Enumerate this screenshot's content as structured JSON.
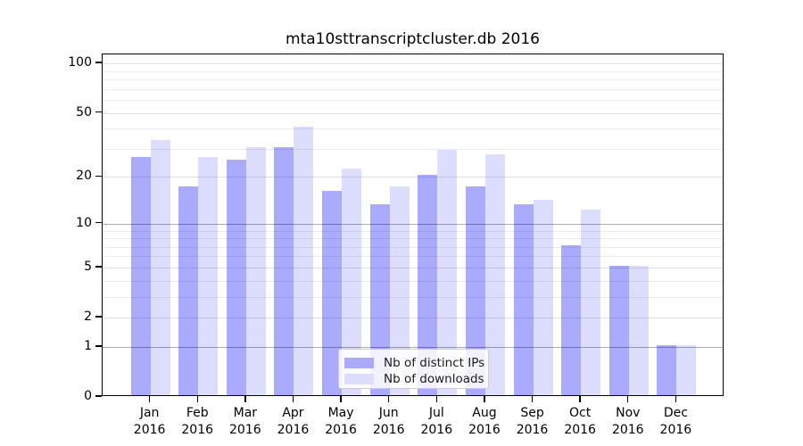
{
  "chart_data": {
    "type": "bar",
    "title": "mta10sttranscriptcluster.db 2016",
    "categories": [
      "Jan",
      "Feb",
      "Mar",
      "Apr",
      "May",
      "Jun",
      "Jul",
      "Aug",
      "Sep",
      "Oct",
      "Nov",
      "Dec"
    ],
    "category_year": "2016",
    "series": [
      {
        "name": "Nb of distinct IPs",
        "color": "#aaaaff",
        "values": [
          26,
          17,
          25,
          30,
          16,
          13,
          20,
          17,
          13,
          7,
          5,
          1
        ]
      },
      {
        "name": "Nb of downloads",
        "color": "#ddddff",
        "values": [
          33,
          26,
          30,
          40,
          22,
          17,
          29,
          27,
          14,
          12,
          5,
          1
        ]
      }
    ],
    "xlabel": "",
    "ylabel": "",
    "y_axis": {
      "scale": "log1p",
      "ticks": [
        0,
        1,
        2,
        5,
        10,
        20,
        50,
        100
      ],
      "strong_gridlines": [
        1,
        10
      ],
      "medium_gridlines": [
        2,
        5,
        20,
        50,
        100
      ],
      "minor_gridlines": [
        3,
        4,
        6,
        7,
        8,
        9,
        30,
        40,
        60,
        70,
        80,
        90
      ],
      "ylim": [
        0,
        113
      ]
    },
    "legend": {
      "position": "lower center",
      "entries": [
        "Nb of distinct IPs",
        "Nb of downloads"
      ]
    },
    "grid": true,
    "colors": {
      "bar_ips": "#aaaaff",
      "bar_downloads": "#ddddff",
      "gridline_strong": "rgba(0,0,0,0.33)",
      "gridline_medium": "rgba(0,0,0,0.12)",
      "gridline_minor": "rgba(0,0,0,0.075)",
      "axis": "#000000"
    }
  }
}
